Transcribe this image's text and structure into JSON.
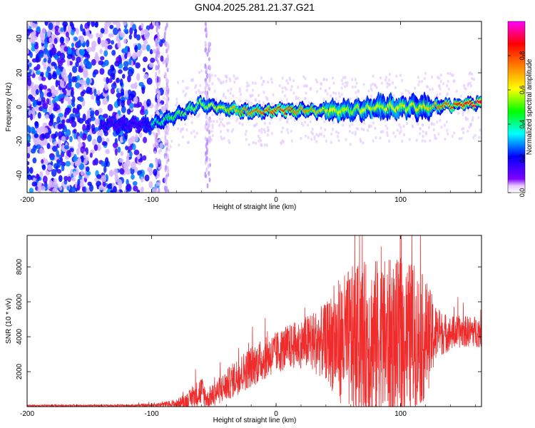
{
  "title": "GN04.2025.281.21.37.G21",
  "chart_data": [
    {
      "type": "heatmap",
      "xlabel": "Height of straight line (km)",
      "ylabel": "Frequency (Hz)",
      "xlim": [
        -200,
        165
      ],
      "ylim": [
        -50,
        50
      ],
      "xticks": [
        -200,
        -100,
        0,
        100
      ],
      "yticks": [
        -40,
        -20,
        0,
        20,
        40
      ],
      "colorbar": {
        "label": "Normalized spectral amplitude",
        "range": [
          0,
          1
        ],
        "ticks": [
          0.0,
          0.2,
          0.4,
          0.6,
          0.8
        ],
        "tick_labels": [
          "0.0",
          "0.2",
          "0.4",
          "0.6",
          "0.8"
        ],
        "colormap": [
          "#8000ff",
          "#0000ff",
          "#00ffff",
          "#00ff00",
          "#ffff00",
          "#ff8000",
          "#ff0000",
          "#ff00ff"
        ]
      },
      "ridge": {
        "description_points_x": [
          -100,
          -80,
          -60,
          -50,
          -40,
          -20,
          0,
          20,
          40,
          60,
          80,
          100,
          120,
          140,
          160
        ],
        "center_freq": [
          -10,
          -5,
          2,
          0,
          -1,
          -3,
          -2,
          -2,
          -2,
          -2,
          0,
          0,
          0,
          1,
          2
        ],
        "peak_amplitude": [
          0.35,
          0.45,
          0.5,
          0.55,
          0.6,
          0.75,
          0.8,
          0.75,
          0.6,
          0.5,
          0.55,
          0.55,
          0.6,
          0.8,
          0.9
        ]
      }
    },
    {
      "type": "line",
      "xlabel": "Height of straight line (km)",
      "ylabel": "SNR (10 * v/v)",
      "xlim": [
        -200,
        165
      ],
      "ylim": [
        0,
        9800
      ],
      "xticks": [
        -200,
        -100,
        0,
        100
      ],
      "yticks": [
        2000,
        4000,
        6000,
        8000
      ],
      "color": "#ef2b2b",
      "envelope": {
        "x": [
          -200,
          -150,
          -120,
          -100,
          -90,
          -80,
          -70,
          -60,
          -55,
          -50,
          -40,
          -30,
          -20,
          -10,
          0,
          10,
          20,
          30,
          40,
          50,
          60,
          70,
          80,
          90,
          100,
          110,
          120,
          130,
          140,
          150,
          165
        ],
        "base": [
          60,
          60,
          60,
          80,
          130,
          160,
          400,
          900,
          400,
          700,
          1200,
          1800,
          2300,
          2700,
          3100,
          3400,
          3600,
          3700,
          3700,
          3800,
          3800,
          3800,
          3800,
          3800,
          3800,
          3900,
          3900,
          4200,
          4200,
          4300,
          4300
        ],
        "spread": [
          40,
          50,
          60,
          100,
          150,
          250,
          500,
          900,
          500,
          700,
          900,
          1100,
          1200,
          1200,
          1200,
          1300,
          1400,
          1800,
          2200,
          3500,
          4200,
          4500,
          4700,
          4700,
          4600,
          4400,
          3500,
          1400,
          1000,
          900,
          900
        ]
      }
    }
  ]
}
